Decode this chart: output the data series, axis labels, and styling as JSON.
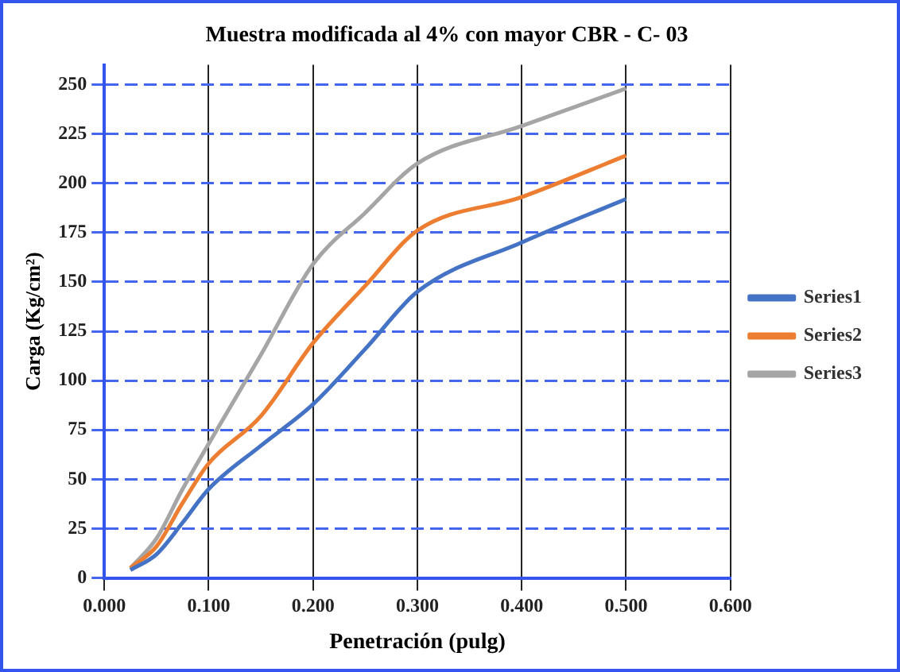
{
  "chart_data": {
    "type": "line",
    "title": "Muestra modificada al 4% con mayor CBR - C- 03",
    "xlabel": "Penetración (pulg)",
    "ylabel": "Carga (Kg/cm²)",
    "x": [
      0.025,
      0.05,
      0.075,
      0.1,
      0.15,
      0.2,
      0.25,
      0.3,
      0.4,
      0.5
    ],
    "series": [
      {
        "name": "Series1",
        "color": "#4472c4",
        "values": [
          4,
          12,
          28,
          45,
          67,
          88,
          116,
          145,
          170,
          192
        ]
      },
      {
        "name": "Series2",
        "color": "#ed7d31",
        "values": [
          5,
          16,
          38,
          58,
          82,
          119,
          148,
          176,
          193,
          214
        ]
      },
      {
        "name": "Series3",
        "color": "#a5a5a5",
        "values": [
          5,
          20,
          45,
          68,
          113,
          159,
          185,
          210,
          229,
          248
        ]
      }
    ],
    "xlim": [
      0,
      0.6
    ],
    "xticks": [
      {
        "value": 0,
        "label": "0.000"
      },
      {
        "value": 0.1,
        "label": "0.100"
      },
      {
        "value": 0.2,
        "label": "0.200"
      },
      {
        "value": 0.3,
        "label": "0.300"
      },
      {
        "value": 0.4,
        "label": "0.400"
      },
      {
        "value": 0.5,
        "label": "0.500"
      },
      {
        "value": 0.6,
        "label": "0.600"
      }
    ],
    "ylim": [
      0,
      260
    ],
    "yticks": [
      0,
      25,
      50,
      75,
      100,
      125,
      150,
      175,
      200,
      225,
      250
    ],
    "grid": true,
    "legend": "right",
    "marker": "none",
    "line_style": "solid"
  }
}
